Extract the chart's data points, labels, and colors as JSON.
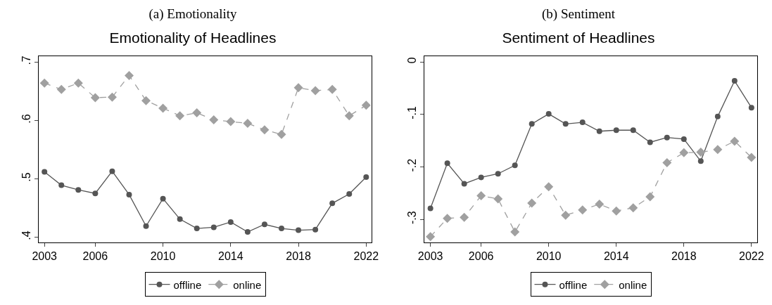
{
  "chart_data": [
    {
      "type": "line",
      "subtitle": "(a) Emotionality",
      "title": "Emotionality of Headlines",
      "x": [
        2003,
        2004,
        2005,
        2006,
        2007,
        2008,
        2009,
        2010,
        2011,
        2012,
        2013,
        2014,
        2015,
        2016,
        2017,
        2018,
        2019,
        2020,
        2021,
        2022
      ],
      "series": [
        {
          "name": "offline",
          "color": "#555555",
          "marker": "circle",
          "line_style": "solid",
          "values": [
            0.512,
            0.489,
            0.481,
            0.475,
            0.513,
            0.473,
            0.419,
            0.466,
            0.431,
            0.415,
            0.417,
            0.426,
            0.409,
            0.422,
            0.415,
            0.412,
            0.413,
            0.458,
            0.474,
            0.503
          ]
        },
        {
          "name": "online",
          "color": "#a0a0a0",
          "marker": "diamond",
          "line_style": "dashed",
          "values": [
            0.664,
            0.653,
            0.664,
            0.639,
            0.64,
            0.677,
            0.634,
            0.621,
            0.608,
            0.613,
            0.601,
            0.598,
            0.595,
            0.584,
            0.576,
            0.656,
            0.651,
            0.653,
            0.608,
            0.626
          ]
        }
      ],
      "xlim": [
        2002.66,
        2022.32
      ],
      "xticks": [
        2003,
        2006,
        2010,
        2014,
        2018,
        2022
      ],
      "ylim": [
        0.391,
        0.71
      ],
      "yticks": [
        {
          "value": 0.4,
          "label": ".4"
        },
        {
          "value": 0.5,
          "label": ".5"
        },
        {
          "value": 0.6,
          "label": ".6"
        },
        {
          "value": 0.7,
          "label": ".7"
        }
      ],
      "grid": false,
      "legend": "bottom"
    },
    {
      "type": "line",
      "subtitle": "(b) Sentiment",
      "title": "Sentiment of Headlines",
      "x": [
        2003,
        2004,
        2005,
        2006,
        2007,
        2008,
        2009,
        2010,
        2011,
        2012,
        2013,
        2014,
        2015,
        2016,
        2017,
        2018,
        2019,
        2020,
        2021,
        2022
      ],
      "series": [
        {
          "name": "offline",
          "color": "#555555",
          "marker": "circle",
          "line_style": "solid",
          "values": [
            -0.279,
            -0.193,
            -0.232,
            -0.22,
            -0.213,
            -0.197,
            -0.118,
            -0.099,
            -0.118,
            -0.115,
            -0.132,
            -0.13,
            -0.13,
            -0.153,
            -0.144,
            -0.147,
            -0.189,
            -0.104,
            -0.036,
            -0.087
          ]
        },
        {
          "name": "online",
          "color": "#a0a0a0",
          "marker": "diamond",
          "line_style": "dashed",
          "values": [
            -0.333,
            -0.298,
            -0.296,
            -0.255,
            -0.261,
            -0.324,
            -0.269,
            -0.238,
            -0.292,
            -0.282,
            -0.271,
            -0.284,
            -0.278,
            -0.257,
            -0.192,
            -0.173,
            -0.172,
            -0.167,
            -0.151,
            -0.182
          ]
        }
      ],
      "xlim": [
        2002.64,
        2022.34
      ],
      "xticks": [
        2003,
        2006,
        2010,
        2014,
        2018,
        2022
      ],
      "ylim": [
        -0.344,
        0.011
      ],
      "yticks": [
        {
          "value": -0.3,
          "label": "-.3"
        },
        {
          "value": -0.2,
          "label": "-.2"
        },
        {
          "value": -0.1,
          "label": "-.1"
        },
        0
      ],
      "grid": false,
      "legend": "bottom"
    }
  ]
}
